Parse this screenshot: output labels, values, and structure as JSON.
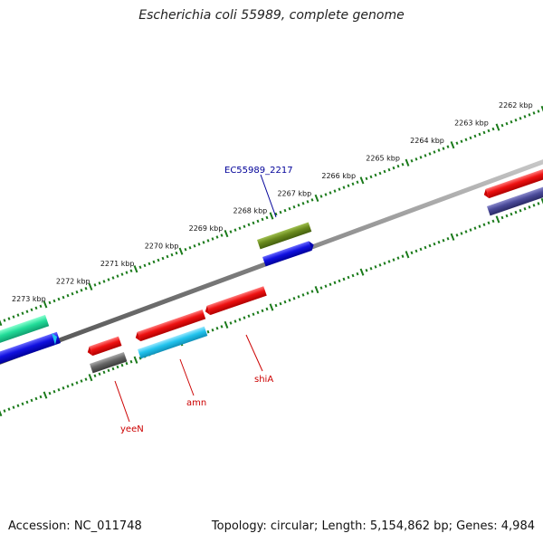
{
  "title": "Escherichia coli 55989, complete genome",
  "footer": {
    "accession": "Accession: NC_011748",
    "summary": "Topology: circular; Length: 5,154,862 bp; Genes: 4,984"
  },
  "ruler": {
    "unit": "kbp",
    "labels": [
      "2262 kbp",
      "2263 kbp",
      "2264 kbp",
      "2265 kbp",
      "2266 kbp",
      "2267 kbp",
      "2268 kbp",
      "2269 kbp",
      "2270 kbp",
      "2271 kbp",
      "2272 kbp",
      "2273 kbp"
    ]
  },
  "genes": [
    {
      "name": "EC55989_2217",
      "color": "#000099"
    },
    {
      "name": "shiA",
      "color": "#cc0000"
    },
    {
      "name": "amn",
      "color": "#cc0000"
    },
    {
      "name": "yeeN",
      "color": "#cc0000"
    }
  ],
  "colors": {
    "backbone": "#808080",
    "ruler": "#1a7a1a",
    "cds_red": "#ee1111",
    "cds_blue": "#1010e0",
    "cds_cyan": "#22c4ee",
    "cds_olive": "#6a8a1e",
    "cds_gray": "#666666",
    "cds_green": "#22dd99",
    "cds_slate": "#4a4a99"
  }
}
